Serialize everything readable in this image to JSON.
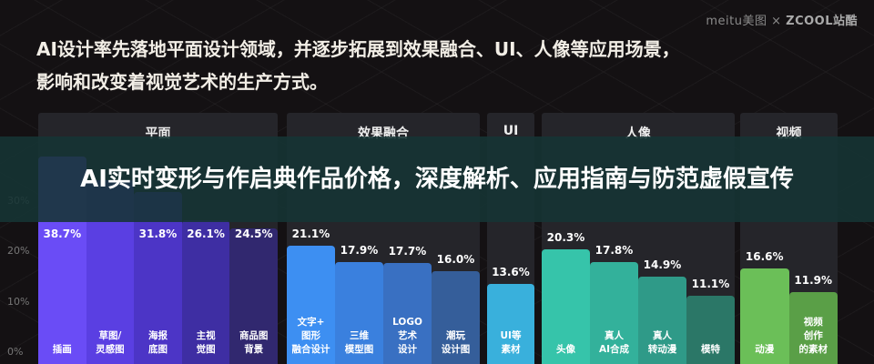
{
  "logo": {
    "brand1": "meitu美图",
    "sep": "×",
    "brand2": "ZCOOL站酷"
  },
  "headline": {
    "line1": "AI设计率先落地平面设计领域，并逐步拓展到效果融合、UI、人像等应用场景，",
    "line2": "影响和改变着视觉艺术的生产方式。"
  },
  "overlay_title": "AI实时变形与作启典作品价格，深度解析、应用指南与防范虚假宣传",
  "chart_data": {
    "type": "bar",
    "ylim": [
      0,
      40
    ],
    "yticks": [
      "0%",
      "10%",
      "20%",
      "30%"
    ],
    "grid": false,
    "groups": [
      {
        "name": "平面",
        "bars": [
          {
            "label": "插画",
            "value": 38.7,
            "text": "38.7%",
            "color": "#6a4cf6"
          },
          {
            "label": "草图/\n灵感图",
            "value": 34.0,
            "text": null,
            "color": "#5a3fe2"
          },
          {
            "label": "海报\n底图",
            "value": 31.8,
            "text": "31.8%",
            "color": "#4c35c6"
          },
          {
            "label": "主视\n觉图",
            "value": 26.1,
            "text": "26.1%",
            "color": "#3e2ea3"
          },
          {
            "label": "商品图\n背景",
            "value": 24.5,
            "text": "24.5%",
            "color": "#31286f"
          }
        ]
      },
      {
        "name": "效果融合",
        "bars": [
          {
            "label": "文字+\n图形\n融合设计",
            "value": 21.1,
            "text": "21.1%",
            "color": "#3d8ff2"
          },
          {
            "label": "三维\n模型图",
            "value": 17.9,
            "text": "17.9%",
            "color": "#3a80de"
          },
          {
            "label": "LOGO\n艺术\n设计",
            "value": 17.7,
            "text": "17.7%",
            "color": "#3970c2"
          },
          {
            "label": "潮玩\n设计图",
            "value": 16.0,
            "text": "16.0%",
            "color": "#355e9a"
          }
        ]
      },
      {
        "name": "UI",
        "bars": [
          {
            "label": "UI等\n素材",
            "value": 13.6,
            "text": "13.6%",
            "color": "#39b0dc"
          }
        ]
      },
      {
        "name": "人像",
        "bars": [
          {
            "label": "头像",
            "value": 20.3,
            "text": "20.3%",
            "color": "#36c4aa"
          },
          {
            "label": "真人\nAI合成",
            "value": 17.8,
            "text": "17.8%",
            "color": "#33b19b"
          },
          {
            "label": "真人\n转动漫",
            "value": 14.9,
            "text": "14.9%",
            "color": "#2f9a88"
          },
          {
            "label": "模特",
            "value": 11.1,
            "text": "11.1%",
            "color": "#2b7767"
          }
        ]
      },
      {
        "name": "视频",
        "bars": [
          {
            "label": "动漫",
            "value": 16.6,
            "text": "16.6%",
            "color": "#6bbf58"
          },
          {
            "label": "视频\n创作\n的素材",
            "value": 11.9,
            "text": "11.9%",
            "color": "#5a9f47"
          }
        ]
      }
    ]
  }
}
